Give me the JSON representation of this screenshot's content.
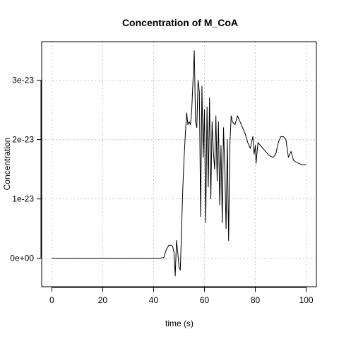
{
  "chart_data": {
    "type": "line",
    "title": "Concentration of M_CoA",
    "xlabel": "time (s)",
    "ylabel": "Concentration",
    "xlim": [
      -4,
      104
    ],
    "ylim": [
      -4.8e-24,
      3.65e-23
    ],
    "x_ticks": [
      0,
      20,
      40,
      60,
      80,
      100
    ],
    "x_tick_labels": [
      "0",
      "20",
      "40",
      "60",
      "80",
      "100"
    ],
    "y_ticks": [
      0,
      1e-23,
      2e-23,
      3e-23
    ],
    "y_tick_labels": [
      "0e+00",
      "1e-23",
      "2e-23",
      "3e-23"
    ],
    "grid": true,
    "series": [
      {
        "color": "#000000",
        "x": [
          0,
          10,
          20,
          30,
          40,
          42,
          44,
          45,
          46,
          47,
          47.5,
          48,
          48.5,
          49,
          49.5,
          50,
          50.5,
          51,
          51.5,
          52,
          52.5,
          53,
          53.5,
          54,
          54.5,
          55,
          55.5,
          56,
          56.5,
          57,
          57.5,
          58,
          58.5,
          59,
          59.5,
          60,
          60.5,
          61,
          61.5,
          62,
          62.5,
          63,
          63.5,
          64,
          64.5,
          65,
          65.5,
          66,
          66.5,
          67,
          67.5,
          68,
          68.5,
          69,
          69.5,
          70,
          70.5,
          71,
          72,
          73,
          74,
          75,
          76,
          77,
          78,
          79,
          79.5,
          80,
          80.3,
          81,
          82,
          83,
          84,
          85,
          86,
          87,
          88,
          89,
          90,
          91,
          92,
          93,
          94,
          95,
          96,
          97,
          98,
          99,
          100
        ],
        "y": [
          0,
          0,
          0,
          0,
          0,
          0,
          1e-25,
          1.5e-24,
          2.2e-24,
          2.2e-24,
          2e-24,
          1e-24,
          -3e-24,
          3e-24,
          1e-24,
          -1.5e-24,
          -2e-24,
          5e-24,
          1.2e-23,
          1.7e-23,
          2.1e-23,
          2.45e-23,
          2.25e-23,
          2.3e-23,
          2.25e-23,
          2.5e-23,
          3e-23,
          3.5e-23,
          2.3e-23,
          2.2e-23,
          3e-23,
          2.8e-23,
          7e-24,
          2.9e-23,
          1.7e-23,
          2.5e-23,
          6e-24,
          2.55e-23,
          1.2e-23,
          2.7e-23,
          1e-23,
          2.3e-23,
          1.8e-23,
          1.5e-23,
          2.4e-23,
          1.3e-23,
          2.3e-23,
          9e-24,
          1.9e-23,
          6e-24,
          2.2e-23,
          1.5e-23,
          5e-24,
          2e-23,
          3e-24,
          1.9e-23,
          2.4e-23,
          2.3e-23,
          2.25e-23,
          2.4e-23,
          2.3e-23,
          2.2e-23,
          2.1e-23,
          1.95e-23,
          1.85e-23,
          2.05e-23,
          1.75e-23,
          1.9e-23,
          1.6e-23,
          1.95e-23,
          1.9e-23,
          1.85e-23,
          1.8e-23,
          1.75e-23,
          1.72e-23,
          1.7e-23,
          1.75e-23,
          1.95e-23,
          2.05e-23,
          2.05e-23,
          2e-23,
          1.7e-23,
          1.8e-23,
          1.65e-23,
          1.62e-23,
          1.6e-23,
          1.58e-23,
          1.57e-23,
          1.58e-23
        ]
      }
    ]
  }
}
